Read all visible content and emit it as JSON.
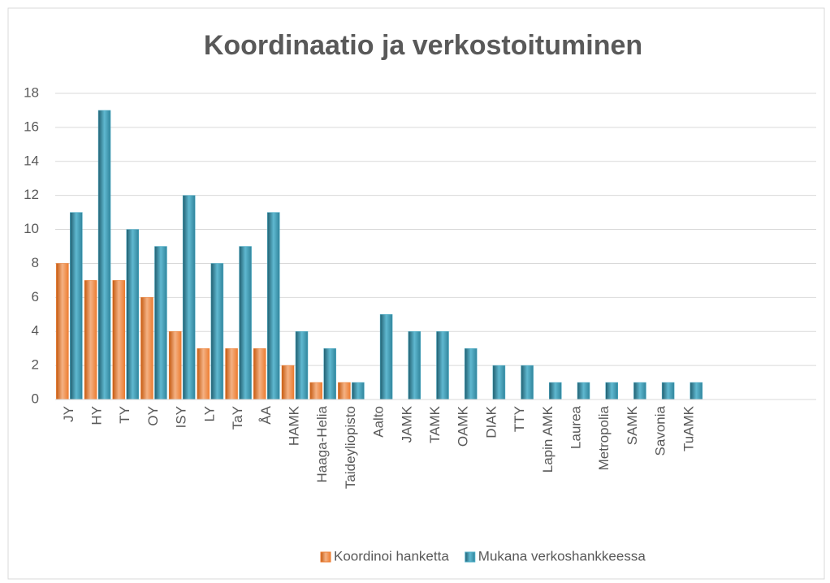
{
  "chart_data": {
    "type": "bar",
    "title": "Koordinaatio ja verkostoituminen",
    "categories": [
      "JY",
      "HY",
      "TY",
      "OY",
      "ISY",
      "LY",
      "TaY",
      "ÅA",
      "HAMK",
      "Haaga-Helia",
      "Taideyliopisto",
      "Aalto",
      "JAMK",
      "TAMK",
      "OAMK",
      "DIAK",
      "TTY",
      "Lapin AMK",
      "Laurea",
      "Metropolia",
      "SAMK",
      "Savonia",
      "TuAMK",
      null,
      null,
      null,
      null
    ],
    "series": [
      {
        "name": "Koordinoi hanketta",
        "color": "#ed7d31",
        "values": [
          8,
          7,
          7,
          6,
          4,
          3,
          3,
          3,
          2,
          1,
          1,
          0,
          0,
          0,
          0,
          0,
          0,
          0,
          0,
          0,
          0,
          0,
          0,
          null,
          null,
          null,
          null
        ]
      },
      {
        "name": "Mukana verkoshankkeessa",
        "color": "#4bacc6",
        "values": [
          11,
          17,
          10,
          9,
          12,
          8,
          9,
          11,
          4,
          3,
          1,
          5,
          4,
          4,
          3,
          2,
          2,
          1,
          1,
          1,
          1,
          1,
          1,
          null,
          null,
          null,
          null
        ]
      }
    ],
    "ylim": [
      0,
      18
    ],
    "yticks": [
      0,
      2,
      4,
      6,
      8,
      10,
      12,
      14,
      16,
      18
    ],
    "grid": true,
    "legend": "bottom"
  }
}
